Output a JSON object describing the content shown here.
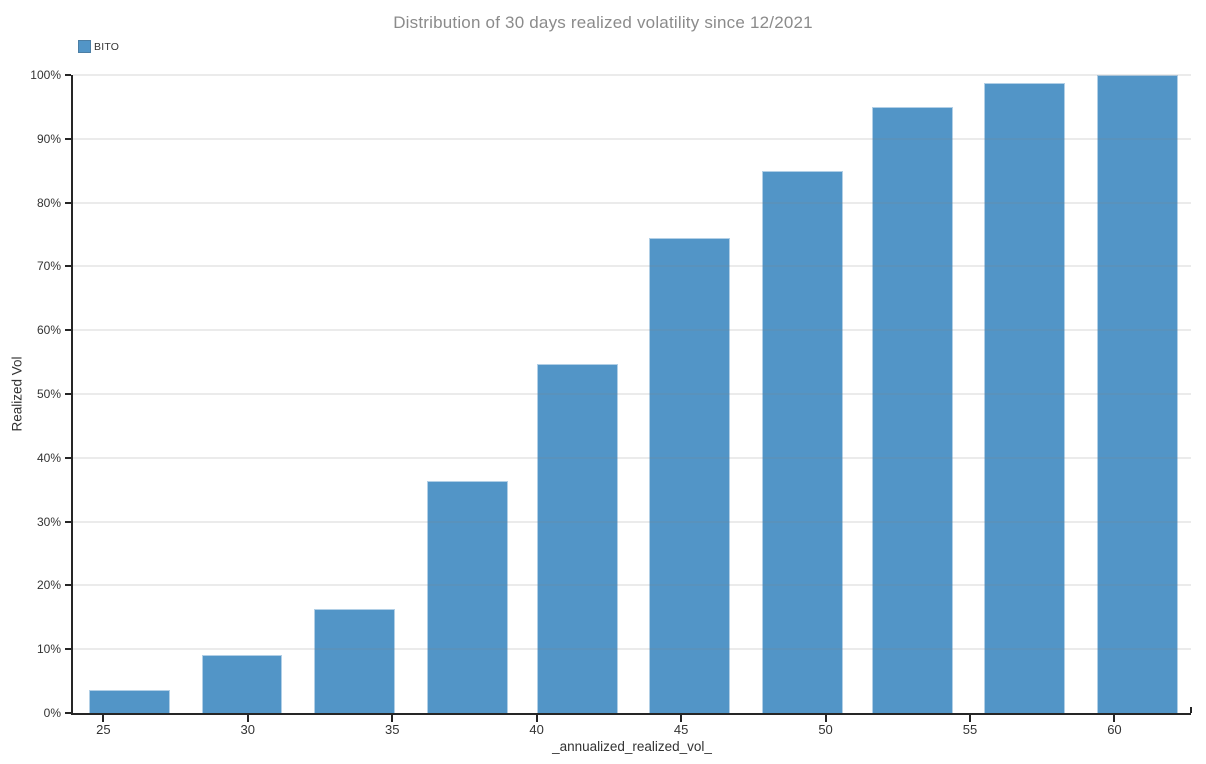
{
  "title": {
    "text": "Distribution of 30 days realized volatility since 12/2021",
    "color": "#8b8b8b"
  },
  "legend": {
    "items": [
      {
        "label": "BITO",
        "color": "#5295c7"
      }
    ]
  },
  "chart_data": {
    "type": "bar",
    "subtype": "cumulative-histogram",
    "title": "Distribution of 30 days realized volatility since 12/2021",
    "xlabel": "_annualized_realized_vol_",
    "ylabel": "Realized Vol",
    "series": [
      {
        "name": "BITO",
        "x": [
          25.9,
          29.8,
          33.7,
          37.6,
          41.4,
          45.3,
          49.2,
          53.0,
          56.9,
          60.8
        ],
        "values": [
          3.6,
          9.1,
          16.3,
          36.4,
          54.7,
          74.4,
          84.9,
          95.0,
          98.8,
          100.0
        ]
      }
    ],
    "bar_width_units": 2.8,
    "bar_color": "#5295c7",
    "xlim": [
      23.95,
      62.65
    ],
    "ylim": [
      0,
      100
    ],
    "x_ticks": [
      25,
      30,
      35,
      40,
      45,
      50,
      55,
      60
    ],
    "x_tick_labels": [
      "25",
      "30",
      "35",
      "40",
      "45",
      "50",
      "55",
      "60"
    ],
    "y_ticks": [
      0,
      10,
      20,
      30,
      40,
      50,
      60,
      70,
      80,
      90,
      100
    ],
    "y_tick_labels": [
      "0%",
      "10%",
      "20%",
      "30%",
      "40%",
      "50%",
      "60%",
      "70%",
      "80%",
      "90%",
      "100%"
    ],
    "grid": true,
    "legend_position": "top-left"
  },
  "colors": {
    "axis_line": "#262626",
    "tick_label": "#333333",
    "gridline": "rgba(130,130,130,0.16)",
    "background": "#ffffff"
  }
}
